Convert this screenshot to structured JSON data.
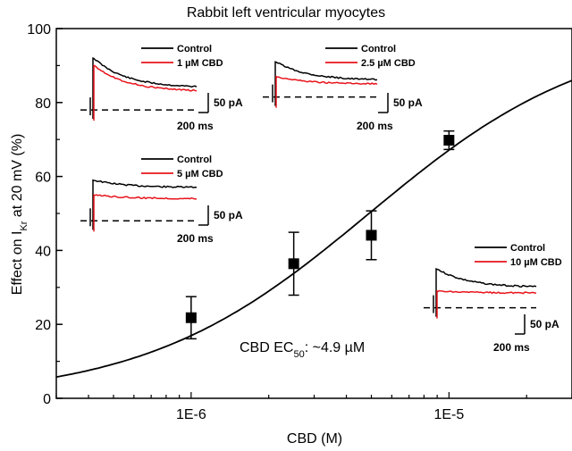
{
  "chart_data": {
    "type": "scatter",
    "title": "Rabbit left ventricular myocytes",
    "xlabel": "CBD (M)",
    "ylabel": {
      "prefix": "Effect on I",
      "sub": "Kr",
      "suffix": " at 20 mV (%)"
    },
    "xscale": "log",
    "xlim": [
      3e-07,
      3e-05
    ],
    "ylim": [
      0,
      100
    ],
    "x_ticks": [
      {
        "value": 1e-06,
        "label": "1E-6"
      },
      {
        "value": 1e-05,
        "label": "1E-5"
      }
    ],
    "y_ticks": [
      0,
      20,
      40,
      60,
      80,
      100
    ],
    "series": [
      {
        "marker": "square",
        "points": [
          {
            "x": 1e-06,
            "y": 21.8,
            "err": 5.7
          },
          {
            "x": 2.5e-06,
            "y": 36.4,
            "err": 8.5
          },
          {
            "x": 5e-06,
            "y": 44.1,
            "err": 6.6
          },
          {
            "x": 1e-05,
            "y": 69.8,
            "err": 2.5
          }
        ]
      }
    ],
    "fit": {
      "type": "hill",
      "ec50": 4.9e-06,
      "hill": 1.0,
      "x_range": [
        3e-07,
        3e-05
      ]
    },
    "annotation": {
      "prefix": "CBD EC",
      "sub": "50",
      "suffix": ": ~4.9 µM"
    },
    "colors": {
      "control": "#000000",
      "cbd": "#e8141b",
      "data": "#000000"
    },
    "insets": [
      {
        "control_label": "Control",
        "cbd_label": "1 µM CBD",
        "current_scale": "50 pA",
        "time_scale": "200 ms",
        "control_peak": 92,
        "control_end": 84,
        "cbd_peak": 90,
        "cbd_end": 83,
        "baseline": 78
      },
      {
        "control_label": "Control",
        "cbd_label": "2.5 µM CBD",
        "current_scale": "50 pA",
        "time_scale": "200 ms",
        "control_peak": 91,
        "control_end": 86,
        "cbd_peak": 87,
        "cbd_end": 85,
        "baseline": 81.5
      },
      {
        "control_label": "Control",
        "cbd_label": "5 µM CBD",
        "current_scale": "50 pA",
        "time_scale": "200 ms",
        "control_peak": 59,
        "control_end": 57,
        "cbd_peak": 55,
        "cbd_end": 54,
        "baseline": 48
      },
      {
        "control_label": "Control",
        "cbd_label": "10 µM CBD",
        "current_scale": "50 pA",
        "time_scale": "200 ms",
        "control_peak": 35,
        "control_end": 30,
        "cbd_peak": 29,
        "cbd_end": 28.5,
        "baseline": 24.5
      }
    ]
  }
}
